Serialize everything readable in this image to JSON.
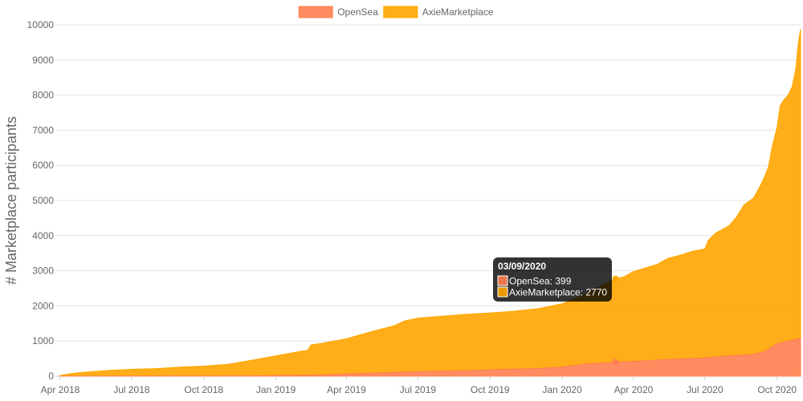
{
  "chart_data": {
    "type": "area",
    "stacked": true,
    "ylabel": "# Marketplace participants",
    "xlabel": "",
    "ylim": [
      0,
      10000
    ],
    "y_ticks": [
      0,
      1000,
      2000,
      3000,
      4000,
      5000,
      6000,
      7000,
      8000,
      9000,
      10000
    ],
    "grid": true,
    "legend_position": "top-center",
    "x_ticks": [
      {
        "date": "2018-04-01",
        "label": "Apr 2018"
      },
      {
        "date": "2018-07-01",
        "label": "Jul 2018"
      },
      {
        "date": "2018-10-01",
        "label": "Oct 2018"
      },
      {
        "date": "2019-01-01",
        "label": "Jan 2019"
      },
      {
        "date": "2019-04-01",
        "label": "Apr 2019"
      },
      {
        "date": "2019-07-01",
        "label": "Jul 2019"
      },
      {
        "date": "2019-10-01",
        "label": "Oct 2019"
      },
      {
        "date": "2020-01-01",
        "label": "Jan 2020"
      },
      {
        "date": "2020-04-01",
        "label": "Apr 2020"
      },
      {
        "date": "2020-07-01",
        "label": "Jul 2020"
      },
      {
        "date": "2020-10-01",
        "label": "Oct 2020"
      }
    ],
    "x_range": [
      "2018-04-01",
      "2020-10-31"
    ],
    "series": [
      {
        "name": "OpenSea",
        "color": "#ff7f50",
        "points": [
          [
            "2018-04-01",
            0
          ],
          [
            "2018-07-01",
            3
          ],
          [
            "2018-10-01",
            6
          ],
          [
            "2018-12-01",
            10
          ],
          [
            "2019-01-01",
            15
          ],
          [
            "2019-03-01",
            35
          ],
          [
            "2019-04-01",
            65
          ],
          [
            "2019-06-01",
            105
          ],
          [
            "2019-07-01",
            130
          ],
          [
            "2019-09-01",
            160
          ],
          [
            "2019-10-01",
            180
          ],
          [
            "2019-12-01",
            220
          ],
          [
            "2020-01-01",
            260
          ],
          [
            "2020-02-01",
            350
          ],
          [
            "2020-03-09",
            399
          ],
          [
            "2020-04-01",
            420
          ],
          [
            "2020-05-01",
            460
          ],
          [
            "2020-06-01",
            490
          ],
          [
            "2020-07-01",
            520
          ],
          [
            "2020-08-01",
            580
          ],
          [
            "2020-09-01",
            620
          ],
          [
            "2020-09-15",
            700
          ],
          [
            "2020-10-01",
            930
          ],
          [
            "2020-10-31",
            1080
          ]
        ]
      },
      {
        "name": "AxieMarketplace",
        "color": "#ffa500",
        "points": [
          [
            "2018-04-01",
            20
          ],
          [
            "2018-04-15",
            70
          ],
          [
            "2018-05-01",
            110
          ],
          [
            "2018-05-15",
            130
          ],
          [
            "2018-06-01",
            160
          ],
          [
            "2018-07-01",
            190
          ],
          [
            "2018-08-01",
            210
          ],
          [
            "2018-09-01",
            250
          ],
          [
            "2018-10-01",
            280
          ],
          [
            "2018-11-01",
            330
          ],
          [
            "2018-12-01",
            440
          ],
          [
            "2019-01-01",
            560
          ],
          [
            "2019-02-01",
            680
          ],
          [
            "2019-02-10",
            700
          ],
          [
            "2019-02-15",
            860
          ],
          [
            "2019-03-01",
            900
          ],
          [
            "2019-04-01",
            1000
          ],
          [
            "2019-05-01",
            1170
          ],
          [
            "2019-06-01",
            1330
          ],
          [
            "2019-06-15",
            1460
          ],
          [
            "2019-07-01",
            1520
          ],
          [
            "2019-08-01",
            1560
          ],
          [
            "2019-09-01",
            1600
          ],
          [
            "2019-10-01",
            1620
          ],
          [
            "2019-11-01",
            1650
          ],
          [
            "2019-12-01",
            1700
          ],
          [
            "2020-01-01",
            1800
          ],
          [
            "2020-02-01",
            2000
          ],
          [
            "2020-03-09",
            2370
          ],
          [
            "2020-03-20",
            2420
          ],
          [
            "2020-04-01",
            2560
          ],
          [
            "2020-05-01",
            2720
          ],
          [
            "2020-05-15",
            2880
          ],
          [
            "2020-06-01",
            2960
          ],
          [
            "2020-06-15",
            3050
          ],
          [
            "2020-07-01",
            3100
          ],
          [
            "2020-07-05",
            3330
          ],
          [
            "2020-07-15",
            3530
          ],
          [
            "2020-08-01",
            3700
          ],
          [
            "2020-08-10",
            3930
          ],
          [
            "2020-08-20",
            4270
          ],
          [
            "2020-09-01",
            4450
          ],
          [
            "2020-09-10",
            4760
          ],
          [
            "2020-09-20",
            5190
          ],
          [
            "2020-09-25",
            5700
          ],
          [
            "2020-10-01",
            6150
          ],
          [
            "2020-10-05",
            6750
          ],
          [
            "2020-10-10",
            6900
          ],
          [
            "2020-10-15",
            7000
          ],
          [
            "2020-10-20",
            7200
          ],
          [
            "2020-10-25",
            7700
          ],
          [
            "2020-10-28",
            8400
          ],
          [
            "2020-10-31",
            8800
          ]
        ]
      }
    ],
    "tooltip": {
      "title": "03/09/2020",
      "date": "2020-03-09",
      "items": [
        {
          "label": "OpenSea: 399",
          "series": 0,
          "value": 399
        },
        {
          "label": "AxieMarketplace: 2770",
          "series": 1,
          "value": 2770
        }
      ]
    }
  }
}
